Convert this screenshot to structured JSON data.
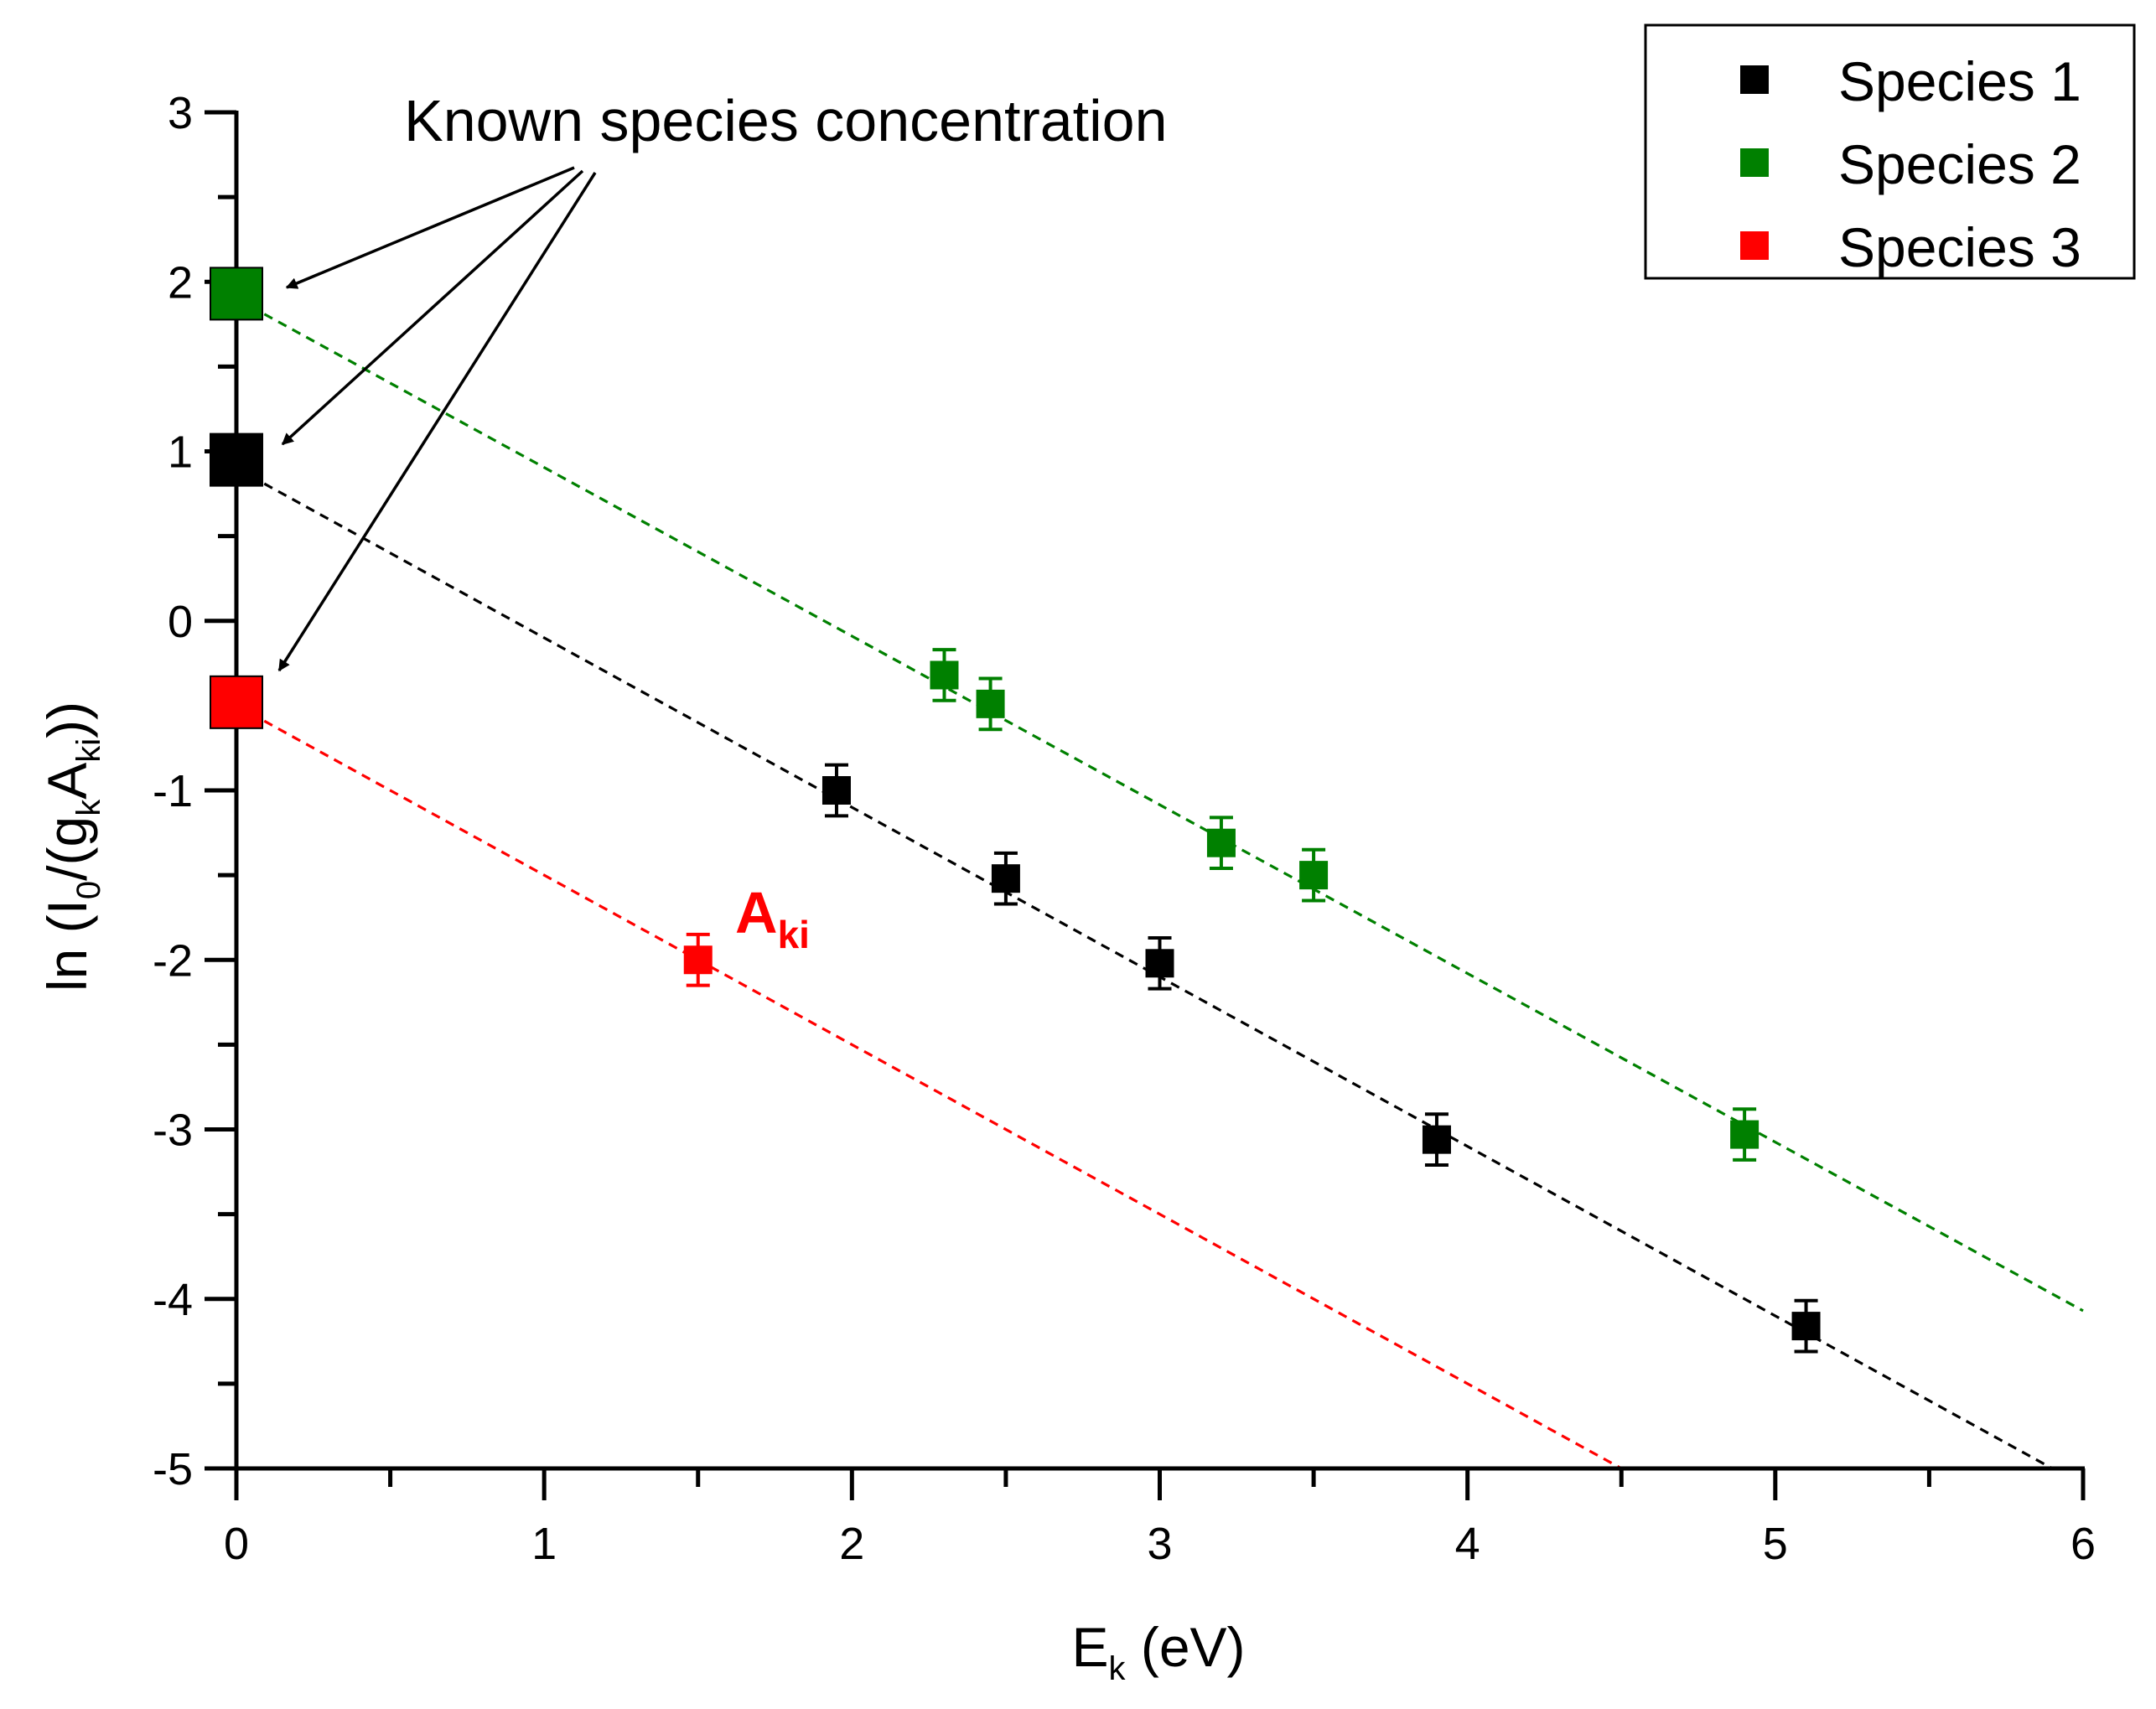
{
  "chart_data": {
    "type": "scatter",
    "xlabel": {
      "main": "E",
      "sub": "k",
      "rest": " (eV)"
    },
    "ylabel": {
      "p1": "ln (I",
      "s1": "0",
      "p2": "/(g",
      "s2": "k",
      "p3": "A",
      "s3": "ki",
      "p4": "))"
    },
    "xlim": [
      0,
      6
    ],
    "ylim": [
      -5,
      3
    ],
    "x_ticks": [
      "0",
      "1",
      "2",
      "3",
      "4",
      "5",
      "6"
    ],
    "y_ticks": [
      "3",
      "2",
      "1",
      "0",
      "-1",
      "-2",
      "-3",
      "-4",
      "-5"
    ],
    "series": [
      {
        "name": "Species 1",
        "color": "#000000",
        "intercept": {
          "x": 0,
          "y": 0.95
        },
        "points": [
          {
            "x": 1.95,
            "y": -1.0,
            "err": 0.15
          },
          {
            "x": 2.5,
            "y": -1.52,
            "err": 0.15
          },
          {
            "x": 3.0,
            "y": -2.02,
            "err": 0.15
          },
          {
            "x": 3.9,
            "y": -3.06,
            "err": 0.15
          },
          {
            "x": 5.1,
            "y": -4.16,
            "err": 0.15
          }
        ],
        "fit": {
          "x0": 0,
          "y0": 0.9,
          "x1": 5.9,
          "y1": -5.0
        }
      },
      {
        "name": "Species 2",
        "color": "#008000",
        "intercept": {
          "x": 0,
          "y": 1.93
        },
        "points": [
          {
            "x": 2.3,
            "y": -0.32,
            "err": 0.15
          },
          {
            "x": 2.45,
            "y": -0.49,
            "err": 0.15
          },
          {
            "x": 3.2,
            "y": -1.31,
            "err": 0.15
          },
          {
            "x": 3.5,
            "y": -1.5,
            "err": 0.15
          },
          {
            "x": 4.9,
            "y": -3.03,
            "err": 0.15
          }
        ],
        "fit": {
          "x0": 0,
          "y0": 1.9,
          "x1": 6.0,
          "y1": -4.07
        }
      },
      {
        "name": "Species 3",
        "color": "#ff0000",
        "intercept": {
          "x": 0,
          "y": -0.48
        },
        "points": [
          {
            "x": 1.5,
            "y": -2.0,
            "err": 0.15
          }
        ],
        "fit": {
          "x0": 0,
          "y0": -0.5,
          "x1": 4.5,
          "y1": -5.0
        }
      }
    ],
    "annotations": {
      "known": "Known species concentration",
      "aki_main": "A",
      "aki_sub": "ki"
    },
    "legend_position": "top-right"
  }
}
